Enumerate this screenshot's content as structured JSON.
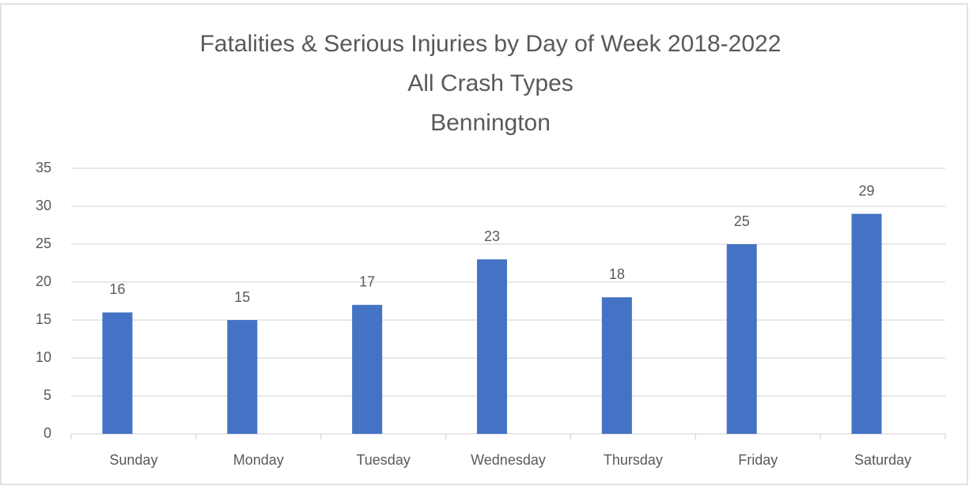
{
  "chart_data": {
    "type": "bar",
    "title": "Fatalities & Serious Injuries by Day of Week 2018-2022",
    "subtitle": [
      "All Crash Types",
      "Bennington"
    ],
    "categories": [
      "Sunday",
      "Monday",
      "Tuesday",
      "Wednesday",
      "Thursday",
      "Friday",
      "Saturday"
    ],
    "values": [
      16,
      15,
      17,
      23,
      18,
      25,
      29
    ],
    "color": "#4472c4",
    "ylim": [
      0,
      35
    ],
    "yticks": [
      0,
      5,
      10,
      15,
      20,
      25,
      30,
      35
    ],
    "grid": true
  }
}
